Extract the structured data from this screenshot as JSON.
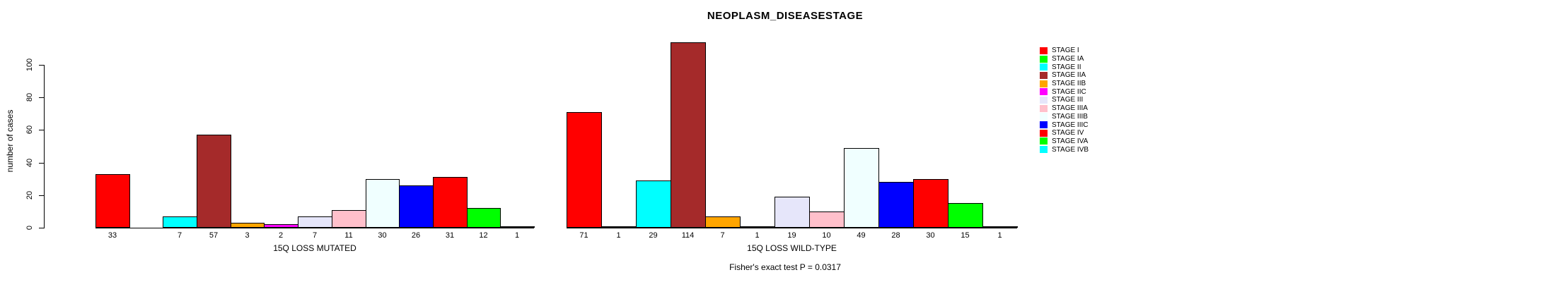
{
  "title": "NEOPLASM_DISEASESTAGE",
  "chart_data": {
    "type": "bar",
    "title": "NEOPLASM_DISEASESTAGE",
    "ylabel": "number of cases",
    "ylim": [
      0,
      100
    ],
    "yticks": [
      0,
      20,
      40,
      60,
      80,
      100
    ],
    "grid": false,
    "legend_position": "right",
    "categories": [
      "STAGE I",
      "STAGE IA",
      "STAGE II",
      "STAGE IIA",
      "STAGE IIB",
      "STAGE IIC",
      "STAGE III",
      "STAGE IIIA",
      "STAGE IIIB",
      "STAGE IIIC",
      "STAGE IV",
      "STAGE IVA",
      "STAGE IVB"
    ],
    "colors": [
      "#FF0000",
      "#00FF00",
      "#00FFFF",
      "#A52A2A",
      "#FFA500",
      "#FF00FF",
      "#E6E6FA",
      "#FFC0CB",
      "#F0FFFF",
      "#0000FF",
      "#FF0000",
      "#00FF00",
      "#00FFFF"
    ],
    "groups": [
      {
        "xlabel": "15Q LOSS MUTATED",
        "values": [
          33,
          0,
          7,
          57,
          3,
          2,
          7,
          11,
          30,
          26,
          31,
          12,
          1
        ]
      },
      {
        "xlabel": "15Q LOSS WILD-TYPE",
        "values": [
          71,
          1,
          29,
          114,
          7,
          1,
          19,
          10,
          49,
          28,
          30,
          15,
          1
        ]
      }
    ],
    "annotation": "Fisher's exact test P = 0.0317"
  }
}
